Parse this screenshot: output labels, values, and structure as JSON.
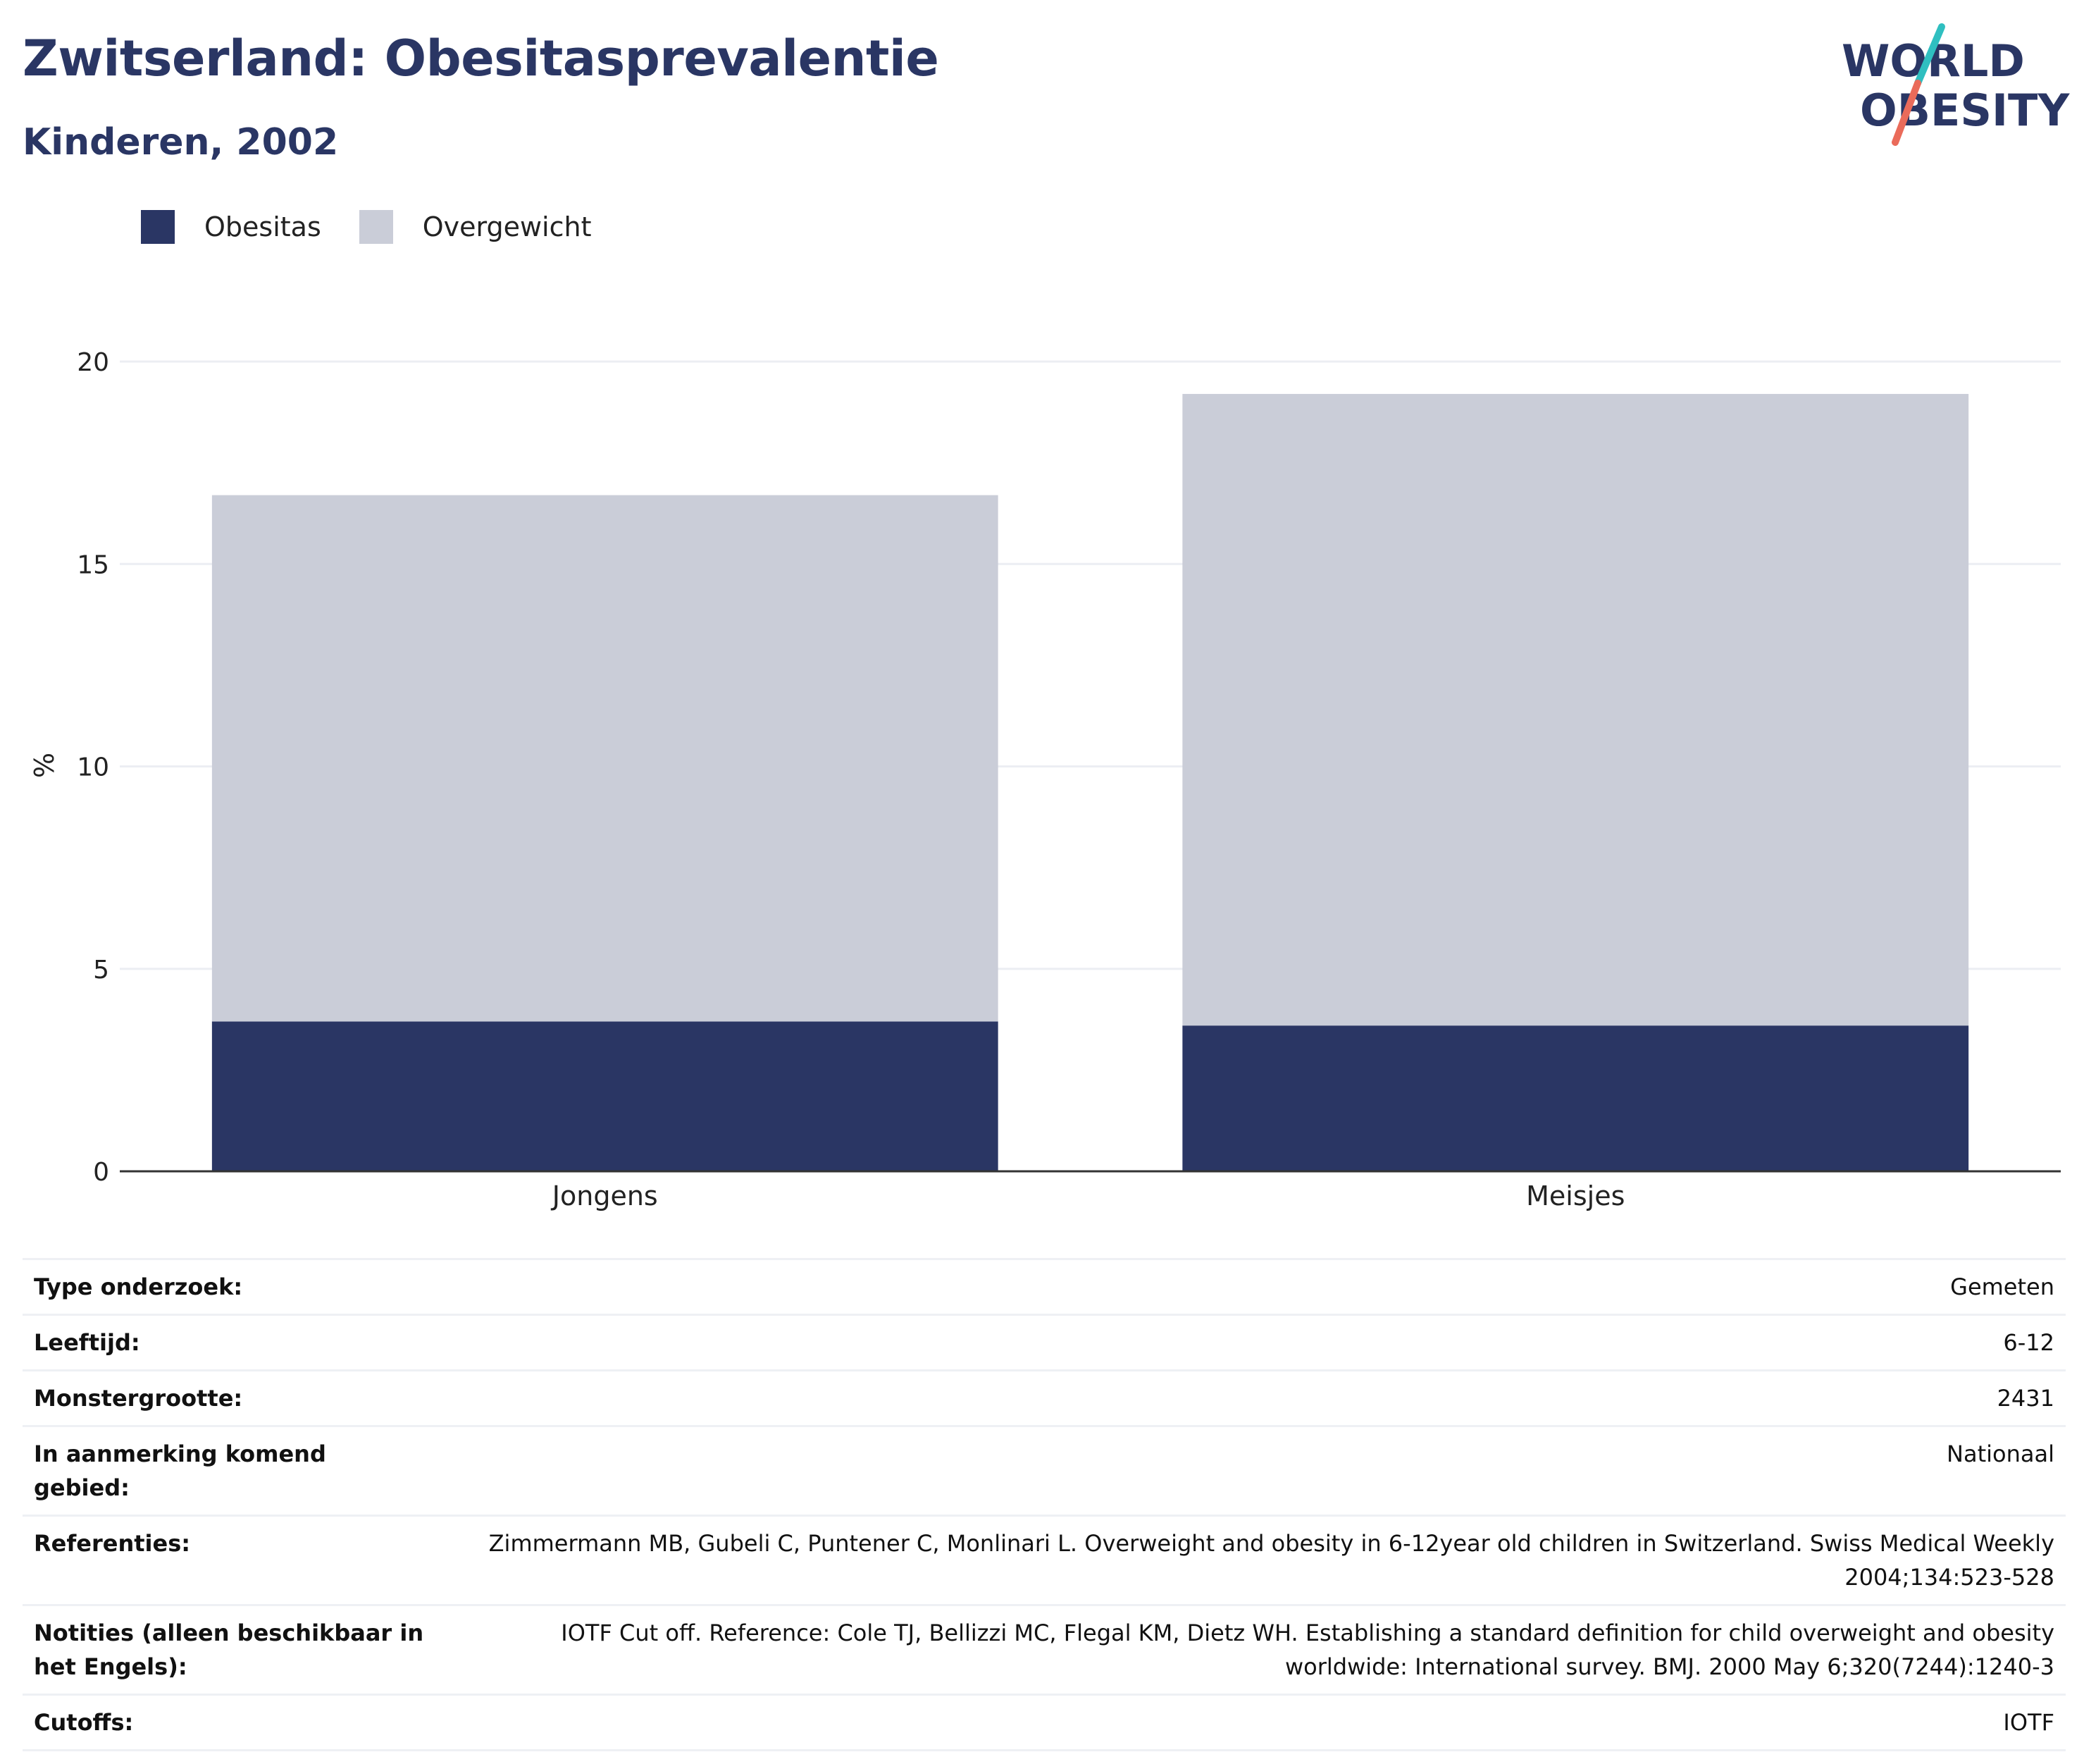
{
  "header": {
    "title": "Zwitserland: Obesitasprevalentie",
    "subtitle": "Kinderen, 2002"
  },
  "logo": {
    "line1": "WORLD",
    "line2": "OBESITY",
    "colors": {
      "navy": "#2a3664",
      "teal": "#2fbfc0",
      "coral": "#ea6b5a"
    }
  },
  "colors": {
    "obesitas": "#2a3664",
    "overgewicht": "#cacdd8",
    "grid": "#eceef3",
    "axis": "#333333"
  },
  "chart_data": {
    "type": "bar",
    "stacked": true,
    "categories": [
      "Jongens",
      "Meisjes"
    ],
    "series": [
      {
        "name": "Obesitas",
        "values": [
          3.7,
          3.6
        ],
        "color": "#2a3664"
      },
      {
        "name": "Overgewicht",
        "values": [
          13.0,
          15.6
        ],
        "color": "#cacdd8"
      }
    ],
    "ylabel": "%",
    "ylim": [
      0,
      20
    ],
    "yticks": [
      0,
      5,
      10,
      15,
      20
    ],
    "grid": true,
    "legend_position": "top-left"
  },
  "details": [
    {
      "key": "Type onderzoek:",
      "value": "Gemeten"
    },
    {
      "key": "Leeftijd:",
      "value": "6-12"
    },
    {
      "key": "Monstergrootte:",
      "value": "2431"
    },
    {
      "key": "In aanmerking komend gebied:",
      "value": "Nationaal"
    },
    {
      "key": "Referenties:",
      "value": "Zimmermann MB, Gubeli C, Puntener C, Monlinari L. Overweight and obesity in 6-12year old children in Switzerland. Swiss Medical Weekly 2004;134:523-528"
    },
    {
      "key": "Notities (alleen beschikbaar in het Engels):",
      "value": "IOTF Cut off. Reference: Cole TJ, Bellizzi MC, Flegal KM, Dietz WH. Establishing a standard definition for child overweight and obesity worldwide: International survey. BMJ. 2000 May 6;320(7244):1240-3"
    },
    {
      "key": "Cutoffs:",
      "value": "IOTF"
    }
  ]
}
